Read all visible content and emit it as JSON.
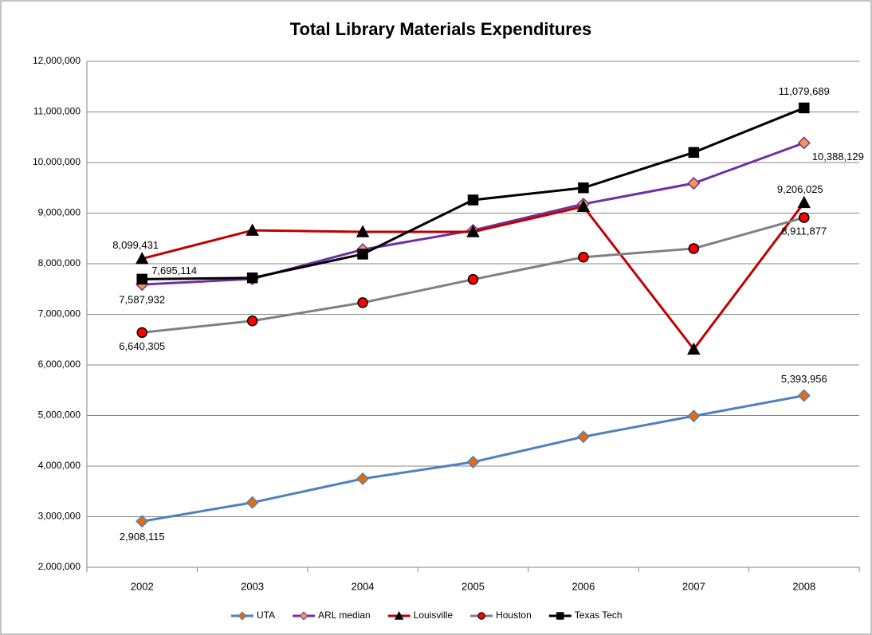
{
  "chart_data": {
    "type": "line",
    "title": "Total Library Materials Expenditures",
    "categories": [
      "2002",
      "2003",
      "2004",
      "2005",
      "2006",
      "2007",
      "2008"
    ],
    "ylim": [
      2000000,
      12000000
    ],
    "yticks": [
      {
        "value": 2000000,
        "label": "2,000,000"
      },
      {
        "value": 3000000,
        "label": "3,000,000"
      },
      {
        "value": 4000000,
        "label": "4,000,000"
      },
      {
        "value": 5000000,
        "label": "5,000,000"
      },
      {
        "value": 6000000,
        "label": "6,000,000"
      },
      {
        "value": 7000000,
        "label": "7,000,000"
      },
      {
        "value": 8000000,
        "label": "8,000,000"
      },
      {
        "value": 9000000,
        "label": "9,000,000"
      },
      {
        "value": 10000000,
        "label": "10,000,000"
      },
      {
        "value": 11000000,
        "label": "11,000,000"
      },
      {
        "value": 12000000,
        "label": "12,000,000"
      }
    ],
    "grid": true,
    "legend": "bottom",
    "series": [
      {
        "name": "UTA",
        "color": "#4f81bd",
        "marker": "diamond",
        "marker_color": "#e46c0a",
        "values": [
          2908115,
          3280000,
          3750000,
          4080000,
          4580000,
          4990000,
          5393956
        ],
        "value_labels": [
          "2,908,115",
          null,
          null,
          null,
          null,
          null,
          "5,393,956"
        ]
      },
      {
        "name": "ARL median",
        "color": "#7030a0",
        "marker": "diamond",
        "marker_color": "#f79646",
        "values": [
          7587932,
          7700000,
          8280000,
          8660000,
          9180000,
          9590000,
          10388129
        ],
        "value_labels": [
          "7,587,932",
          null,
          null,
          null,
          null,
          null,
          "10,388,129"
        ]
      },
      {
        "name": "Louisville",
        "color": "#c00000",
        "marker": "triangle",
        "marker_color": "#000000",
        "values": [
          8099431,
          8660000,
          8630000,
          8630000,
          9130000,
          6310000,
          9206025
        ],
        "value_labels": [
          "8,099,431",
          null,
          null,
          null,
          null,
          null,
          "9,206,025"
        ]
      },
      {
        "name": "Houston",
        "color": "#808080",
        "marker": "circle",
        "marker_color": "#ff0000",
        "values": [
          6640305,
          6870000,
          7230000,
          7690000,
          8130000,
          8300000,
          8911877
        ],
        "value_labels": [
          "6,640,305",
          null,
          null,
          null,
          null,
          null,
          "8,911,877"
        ]
      },
      {
        "name": "Texas Tech",
        "color": "#000000",
        "marker": "square",
        "marker_color": "#000000",
        "values": [
          7695114,
          7720000,
          8190000,
          9260000,
          9500000,
          10200000,
          11079689
        ],
        "value_labels": [
          "7,695,114",
          null,
          null,
          null,
          null,
          null,
          "11,079,689"
        ]
      }
    ]
  }
}
